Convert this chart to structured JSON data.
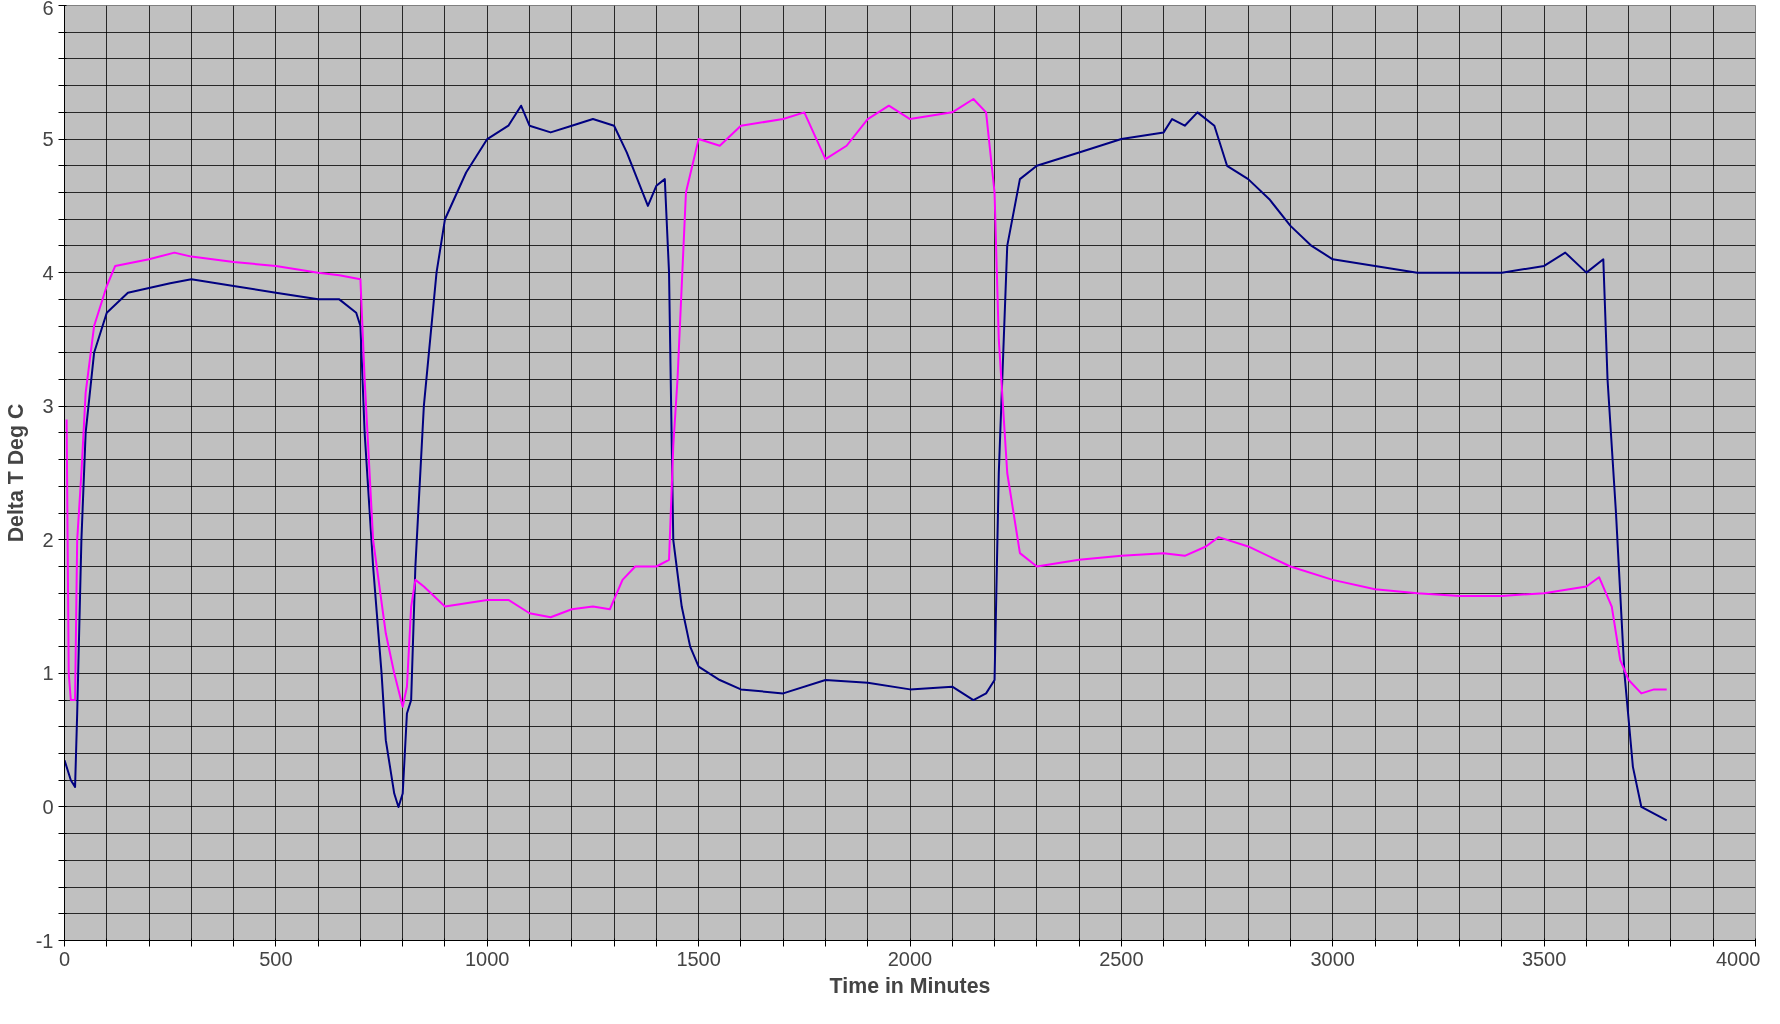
{
  "chart_data": {
    "type": "line",
    "xlabel": "Time in Minutes",
    "ylabel": "Delta T Deg C",
    "xlim": [
      0,
      4000
    ],
    "ylim": [
      -1,
      6
    ],
    "grid": true,
    "line_style": "solid",
    "marker": "none",
    "xticks": [
      0,
      {
        "value": 100,
        "label": null
      },
      {
        "value": 200,
        "label": null
      },
      {
        "value": 300,
        "label": null
      },
      {
        "value": 400,
        "label": null
      },
      500,
      {
        "value": 600,
        "label": null
      },
      {
        "value": 700,
        "label": null
      },
      {
        "value": 800,
        "label": null
      },
      {
        "value": 900,
        "label": null
      },
      1000,
      {
        "value": 1100,
        "label": null
      },
      {
        "value": 1200,
        "label": null
      },
      {
        "value": 1300,
        "label": null
      },
      {
        "value": 1400,
        "label": null
      },
      1500,
      {
        "value": 1600,
        "label": null
      },
      {
        "value": 1700,
        "label": null
      },
      {
        "value": 1800,
        "label": null
      },
      {
        "value": 1900,
        "label": null
      },
      2000,
      {
        "value": 2100,
        "label": null
      },
      {
        "value": 2200,
        "label": null
      },
      {
        "value": 2300,
        "label": null
      },
      {
        "value": 2400,
        "label": null
      },
      2500,
      {
        "value": 2600,
        "label": null
      },
      {
        "value": 2700,
        "label": null
      },
      {
        "value": 2800,
        "label": null
      },
      {
        "value": 2900,
        "label": null
      },
      3000,
      {
        "value": 3100,
        "label": null
      },
      {
        "value": 3200,
        "label": null
      },
      {
        "value": 3300,
        "label": null
      },
      {
        "value": 3400,
        "label": null
      },
      3500,
      {
        "value": 3600,
        "label": null
      },
      {
        "value": 3700,
        "label": null
      },
      {
        "value": 3800,
        "label": null
      },
      {
        "value": 3900,
        "label": null
      },
      4000
    ],
    "yticks": [
      -1,
      {
        "value": -0.8,
        "label": null
      },
      {
        "value": -0.6,
        "label": null
      },
      {
        "value": -0.4,
        "label": null
      },
      {
        "value": -0.2,
        "label": null
      },
      0,
      {
        "value": 0.2,
        "label": null
      },
      {
        "value": 0.4,
        "label": null
      },
      {
        "value": 0.6,
        "label": null
      },
      {
        "value": 0.8,
        "label": null
      },
      1,
      {
        "value": 1.2,
        "label": null
      },
      {
        "value": 1.4,
        "label": null
      },
      {
        "value": 1.6,
        "label": null
      },
      {
        "value": 1.8,
        "label": null
      },
      2,
      {
        "value": 2.2,
        "label": null
      },
      {
        "value": 2.4,
        "label": null
      },
      {
        "value": 2.6,
        "label": null
      },
      {
        "value": 2.8,
        "label": null
      },
      3,
      {
        "value": 3.2,
        "label": null
      },
      {
        "value": 3.4,
        "label": null
      },
      {
        "value": 3.6,
        "label": null
      },
      {
        "value": 3.8,
        "label": null
      },
      4,
      {
        "value": 4.2,
        "label": null
      },
      {
        "value": 4.4,
        "label": null
      },
      {
        "value": 4.6,
        "label": null
      },
      {
        "value": 4.8,
        "label": null
      },
      5,
      {
        "value": 5.2,
        "label": null
      },
      {
        "value": 5.4,
        "label": null
      },
      {
        "value": 5.6,
        "label": null
      },
      {
        "value": 5.8,
        "label": null
      },
      6
    ],
    "series": [
      {
        "color": "#000080",
        "x": [
          0,
          15,
          25,
          30,
          40,
          50,
          70,
          100,
          150,
          250,
          300,
          400,
          500,
          600,
          650,
          690,
          700,
          710,
          730,
          750,
          760,
          780,
          790,
          800,
          810,
          820,
          830,
          850,
          880,
          900,
          950,
          1000,
          1050,
          1080,
          1100,
          1150,
          1200,
          1250,
          1300,
          1330,
          1380,
          1400,
          1420,
          1430,
          1440,
          1460,
          1480,
          1500,
          1550,
          1600,
          1700,
          1800,
          1900,
          2000,
          2100,
          2150,
          2180,
          2200,
          2210,
          2230,
          2260,
          2300,
          2400,
          2500,
          2600,
          2620,
          2650,
          2680,
          2720,
          2750,
          2800,
          2850,
          2900,
          2950,
          3000,
          3100,
          3200,
          3300,
          3400,
          3500,
          3550,
          3600,
          3640,
          3650,
          3670,
          3690,
          3710,
          3730,
          3760,
          3790
        ],
        "values": [
          0.35,
          0.2,
          0.15,
          0.7,
          2.0,
          2.8,
          3.4,
          3.7,
          3.85,
          3.92,
          3.95,
          3.9,
          3.85,
          3.8,
          3.8,
          3.7,
          3.6,
          2.8,
          1.8,
          1.0,
          0.5,
          0.1,
          0.0,
          0.1,
          0.7,
          0.8,
          1.8,
          3.0,
          4.0,
          4.4,
          4.75,
          5.0,
          5.1,
          5.25,
          5.1,
          5.05,
          5.1,
          5.15,
          5.1,
          4.9,
          4.5,
          4.65,
          4.7,
          4.0,
          2.0,
          1.5,
          1.2,
          1.05,
          0.95,
          0.88,
          0.85,
          0.95,
          0.93,
          0.88,
          0.9,
          0.8,
          0.85,
          0.95,
          2.5,
          4.2,
          4.7,
          4.8,
          4.9,
          5.0,
          5.05,
          5.15,
          5.1,
          5.2,
          5.1,
          4.8,
          4.7,
          4.55,
          4.35,
          4.2,
          4.1,
          4.05,
          4.0,
          4.0,
          4.0,
          4.05,
          4.15,
          4.0,
          4.1,
          3.2,
          2.2,
          1.0,
          0.3,
          0.0,
          -0.05,
          -0.1
        ]
      },
      {
        "color": "#ff00ff",
        "x": [
          5,
          10,
          15,
          25,
          30,
          40,
          50,
          70,
          100,
          120,
          200,
          260,
          300,
          400,
          500,
          600,
          650,
          700,
          710,
          730,
          760,
          780,
          800,
          810,
          820,
          830,
          850,
          900,
          1000,
          1050,
          1100,
          1150,
          1200,
          1250,
          1290,
          1320,
          1350,
          1400,
          1430,
          1440,
          1450,
          1470,
          1500,
          1550,
          1600,
          1700,
          1750,
          1800,
          1850,
          1900,
          1950,
          2000,
          2100,
          2150,
          2180,
          2200,
          2210,
          2230,
          2260,
          2300,
          2400,
          2500,
          2600,
          2650,
          2700,
          2730,
          2800,
          2900,
          3000,
          3100,
          3200,
          3300,
          3400,
          3500,
          3600,
          3630,
          3660,
          3680,
          3700,
          3730,
          3760,
          3790
        ],
        "values": [
          2.9,
          1.0,
          0.8,
          0.8,
          2.0,
          2.5,
          3.1,
          3.6,
          3.9,
          4.05,
          4.1,
          4.15,
          4.12,
          4.08,
          4.05,
          4.0,
          3.98,
          3.95,
          3.2,
          2.0,
          1.3,
          1.0,
          0.75,
          0.9,
          1.5,
          1.7,
          1.65,
          1.5,
          1.55,
          1.55,
          1.45,
          1.42,
          1.48,
          1.5,
          1.48,
          1.7,
          1.8,
          1.8,
          1.85,
          2.7,
          3.2,
          4.6,
          5.0,
          4.95,
          5.1,
          5.15,
          5.2,
          4.85,
          4.95,
          5.15,
          5.25,
          5.15,
          5.2,
          5.3,
          5.2,
          4.6,
          3.5,
          2.5,
          1.9,
          1.8,
          1.85,
          1.88,
          1.9,
          1.88,
          1.95,
          2.02,
          1.95,
          1.8,
          1.7,
          1.63,
          1.6,
          1.58,
          1.58,
          1.6,
          1.65,
          1.72,
          1.5,
          1.1,
          0.95,
          0.85,
          0.88,
          0.88
        ]
      }
    ]
  }
}
